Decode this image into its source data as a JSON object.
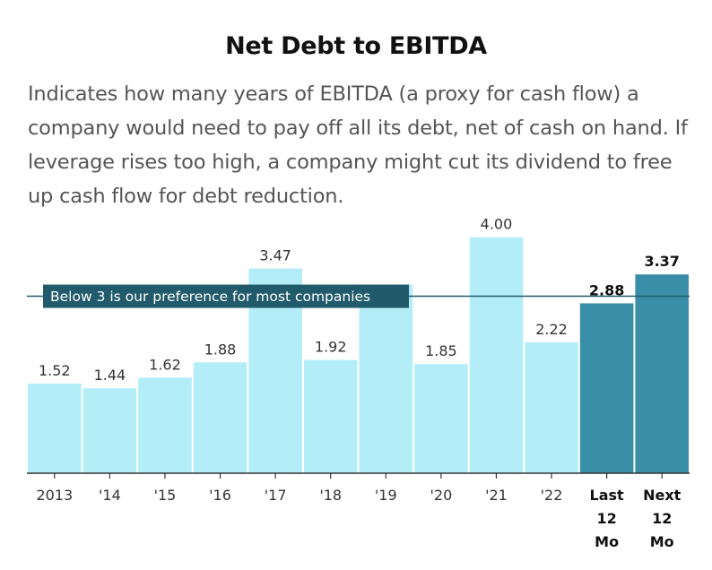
{
  "header": {
    "title": "Net Debt to EBITDA",
    "subtitle": "Indicates how many years of EBITDA (a proxy for cash flow) a company would need to pay off all its debt, net of cash on hand. If leverage rises too high, a company might cut its dividend to free up cash flow for debt reduction."
  },
  "colors": {
    "historical_bar": "#b3eef8",
    "forecast_bar": "#3a8ea8",
    "reference_line": "#215b6b",
    "axis": "#333333"
  },
  "chart_data": {
    "type": "bar",
    "title": "Net Debt to EBITDA",
    "categories": [
      "2013",
      "'14",
      "'15",
      "'16",
      "'17",
      "'18",
      "'19",
      "'20",
      "'21",
      "'22",
      "Last 12 Mo",
      "Next 12 Mo"
    ],
    "category_lines": [
      [
        "2013"
      ],
      [
        "'14"
      ],
      [
        "'15"
      ],
      [
        "'16"
      ],
      [
        "'17"
      ],
      [
        "'18"
      ],
      [
        "'19"
      ],
      [
        "'20"
      ],
      [
        "'21"
      ],
      [
        "'22"
      ],
      [
        "Last",
        "12",
        "Mo"
      ],
      [
        "Next",
        "12",
        "Mo"
      ]
    ],
    "values": [
      1.52,
      1.44,
      1.62,
      1.88,
      3.47,
      1.92,
      3.2,
      1.85,
      4.0,
      2.22,
      2.88,
      3.37
    ],
    "value_labels": [
      "1.52",
      "1.44",
      "1.62",
      "1.88",
      "3.47",
      "1.92",
      "",
      "1.85",
      "4.00",
      "2.22",
      "2.88",
      "3.37"
    ],
    "highlighted": [
      false,
      false,
      false,
      false,
      false,
      false,
      false,
      false,
      false,
      false,
      true,
      true
    ],
    "reference_line": {
      "value": 3,
      "label": "Below 3 is our preference for most companies"
    },
    "ylim": [
      0,
      4.3
    ],
    "grid": false,
    "xlabel": "",
    "ylabel": ""
  }
}
